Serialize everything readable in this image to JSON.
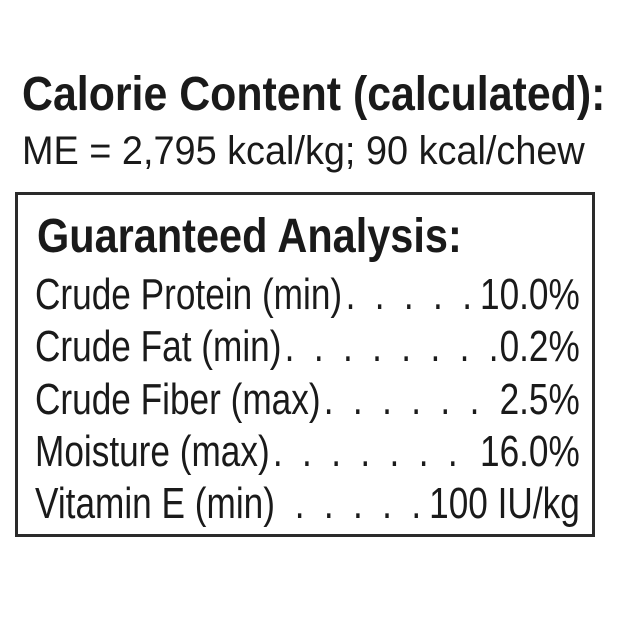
{
  "calorie": {
    "title": "Calorie Content (calculated):",
    "value": "ME = 2,795 kcal/kg; 90 kcal/chew"
  },
  "analysis": {
    "title": "Guaranteed Analysis:",
    "rows": [
      {
        "label": "Crude Protein (min)",
        "leader": ". . . . .",
        "value": "10.0%"
      },
      {
        "label": "Crude Fat (min)",
        "leader": ". . . . . . . . . .",
        "value": "0.2%"
      },
      {
        "label": "Crude Fiber (max)",
        "leader": ". . . . . . . .",
        "value": "2.5%"
      },
      {
        "label": "Moisture (max)",
        "leader": ". . . . . . . .",
        "value": "16.0%"
      },
      {
        "label": "Vitamin E (min)",
        "leader": ". . . . .",
        "value": "100 IU/kg"
      }
    ]
  }
}
